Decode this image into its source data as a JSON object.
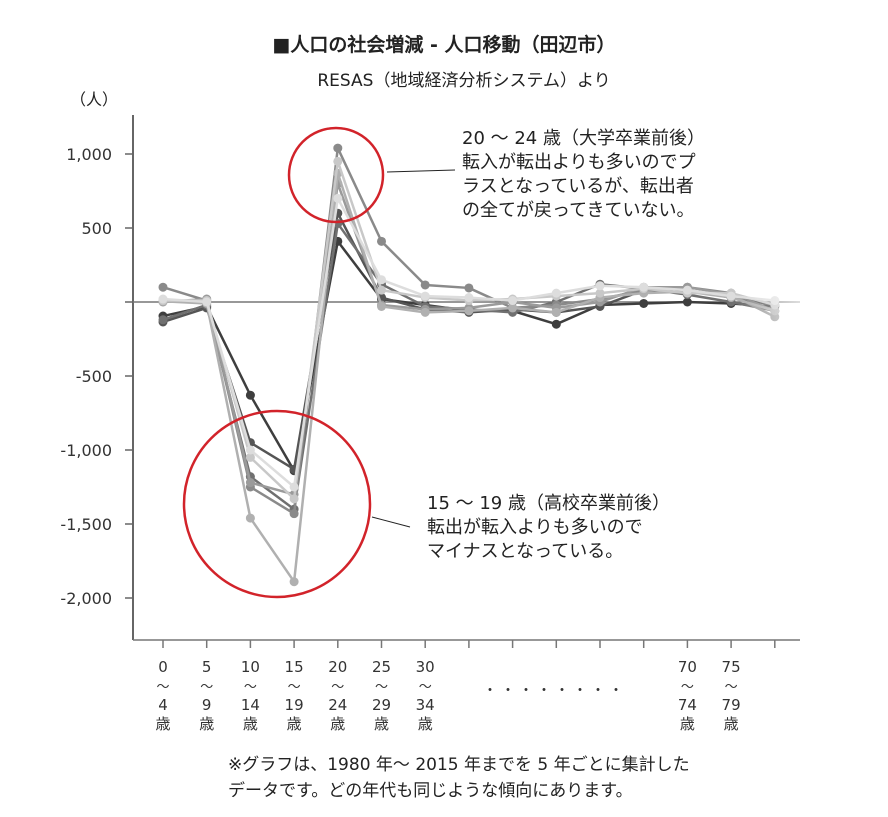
{
  "chart_data": {
    "type": "line",
    "title": "■人口の社会増減 - 人口移動（田辺市）",
    "subtitle": "RESAS（地域経済分析システム）より",
    "ylabel": "（人）",
    "ylim": [
      -2300,
      1250
    ],
    "yticks": [
      1000,
      500,
      0,
      -500,
      -1000,
      -1500,
      -2000
    ],
    "ytick_labels": [
      "1,000",
      "500",
      "",
      "-500",
      "-1,000",
      "-1,500",
      "-2,000"
    ],
    "categories": [
      "0～4歳",
      "5～9歳",
      "10～14歳",
      "15～19歳",
      "20～24歳",
      "25～29歳",
      "30～34歳",
      "",
      "",
      "",
      "",
      "",
      "70～74歳",
      "75～79歳",
      ""
    ],
    "x_tick_labels": [
      [
        "0",
        "～",
        "4",
        "歳"
      ],
      [
        "5",
        "～",
        "9",
        "歳"
      ],
      [
        "10",
        "～",
        "14",
        "歳"
      ],
      [
        "15",
        "～",
        "19",
        "歳"
      ],
      [
        "20",
        "～",
        "24",
        "歳"
      ],
      [
        "25",
        "～",
        "29",
        "歳"
      ],
      [
        "30",
        "～",
        "34",
        "歳"
      ],
      null,
      null,
      null,
      null,
      null,
      [
        "70",
        "～",
        "74",
        "歳"
      ],
      [
        "75",
        "～",
        "79",
        "歳"
      ],
      null
    ],
    "ellipsis": "・・・・・・・・",
    "series": [
      {
        "color": "#3e3e3e",
        "values": [
          -95,
          -30,
          -630,
          -1140,
          410,
          20,
          -20,
          -60,
          -60,
          -150,
          -20,
          -10,
          0,
          -10,
          -30
        ]
      },
      {
        "color": "#555555",
        "values": [
          -135,
          -40,
          -950,
          -1130,
          600,
          30,
          -50,
          -70,
          -50,
          -70,
          -30,
          80,
          80,
          30,
          -20
        ]
      },
      {
        "color": "#707070",
        "values": [
          -120,
          -20,
          -1180,
          -1400,
          530,
          120,
          -30,
          -50,
          -70,
          0,
          120,
          90,
          50,
          0,
          -60
        ]
      },
      {
        "color": "#8a8a8a",
        "values": [
          100,
          10,
          -1250,
          -1430,
          1040,
          410,
          115,
          95,
          -40,
          -20,
          20,
          80,
          100,
          60,
          -60
        ]
      },
      {
        "color": "#9a9a9a",
        "values": [
          0,
          20,
          -1220,
          -1300,
          800,
          -20,
          -50,
          -40,
          0,
          -40,
          0,
          100,
          100,
          50,
          -100
        ]
      },
      {
        "color": "#b0b0b0",
        "values": [
          5,
          -10,
          -1460,
          -1890,
          870,
          -30,
          -70,
          -60,
          -40,
          -70,
          30,
          60,
          70,
          30,
          -60
        ]
      },
      {
        "color": "#c8c8c8",
        "values": [
          10,
          10,
          -1050,
          -1330,
          950,
          80,
          30,
          10,
          20,
          40,
          60,
          90,
          60,
          60,
          -20
        ]
      },
      {
        "color": "#dddddd",
        "values": [
          20,
          0,
          -1000,
          -1250,
          700,
          150,
          40,
          30,
          10,
          60,
          110,
          100,
          80,
          40,
          10
        ]
      }
    ],
    "annotations": [
      {
        "text": "20 ～ 24 歳（大学卒業前後）\n転入が転出よりも多いのでプ\nラスとなっているが、転出者\nの全てが戻ってきていない。",
        "highlight": "20～24歳"
      },
      {
        "text": "15 ～ 19 歳（高校卒業前後）\n転出が転入よりも多いので\nマイナスとなっている。",
        "highlight": "15～19歳"
      }
    ],
    "highlight_color": "#d2232a",
    "note": "※グラフは、1980 年～ 2015 年までを 5 年ごとに集計した\nデータです。どの年代も同じような傾向にあります。",
    "grid": false,
    "legend": "none"
  }
}
